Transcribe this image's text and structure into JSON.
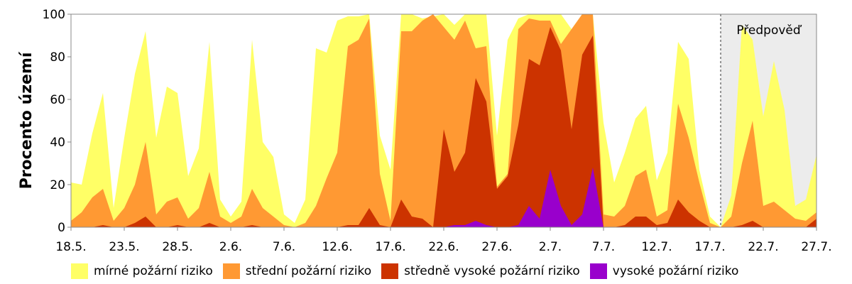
{
  "chart_data": {
    "type": "area",
    "stacked": false,
    "ylabel": "Procento území",
    "ylim": [
      0,
      100
    ],
    "yticks": [
      0,
      20,
      40,
      60,
      80,
      100
    ],
    "xlim": [
      "18.5.",
      "27.7."
    ],
    "xticks": [
      "18.5.",
      "23.5.",
      "28.5.",
      "2.6.",
      "7.6.",
      "12.6.",
      "17.6.",
      "22.6.",
      "27.6.",
      "2.7.",
      "7.7.",
      "12.7.",
      "17.7.",
      "22.7.",
      "27.7."
    ],
    "forecast": {
      "label": "Předpověď",
      "start": "18.7.",
      "end": "27.7."
    },
    "dates": [
      "18.5.",
      "19.5.",
      "20.5.",
      "21.5.",
      "22.5.",
      "23.5.",
      "24.5.",
      "25.5.",
      "26.5.",
      "27.5.",
      "28.5.",
      "29.5.",
      "30.5.",
      "31.5.",
      "1.6.",
      "2.6.",
      "3.6.",
      "4.6.",
      "5.6.",
      "6.6.",
      "7.6.",
      "8.6.",
      "9.6.",
      "10.6.",
      "11.6.",
      "12.6.",
      "13.6.",
      "14.6.",
      "15.6.",
      "16.6.",
      "17.6.",
      "18.6.",
      "19.6.",
      "20.6.",
      "21.6.",
      "22.6.",
      "23.6.",
      "24.6.",
      "25.6.",
      "26.6.",
      "27.6.",
      "28.6.",
      "29.6.",
      "30.6.",
      "1.7.",
      "2.7.",
      "3.7.",
      "4.7.",
      "5.7.",
      "6.7.",
      "7.7.",
      "8.7.",
      "9.7.",
      "10.7.",
      "11.7.",
      "12.7.",
      "13.7.",
      "14.7.",
      "15.7.",
      "16.7.",
      "17.7.",
      "18.7.",
      "19.7.",
      "20.7.",
      "21.7.",
      "22.7.",
      "23.7.",
      "24.7.",
      "25.7.",
      "26.7.",
      "27.7."
    ],
    "series": [
      {
        "name": "mírné požární riziko",
        "color": "#FFFF66",
        "values": [
          21,
          20,
          44,
          63,
          9,
          42,
          72,
          92,
          42,
          66,
          63,
          24,
          37,
          87,
          13,
          5,
          12,
          88,
          40,
          33,
          6,
          2,
          13,
          84,
          82,
          97,
          99,
          99,
          100,
          43,
          27,
          100,
          100,
          98,
          99,
          100,
          95,
          100,
          100,
          100,
          43,
          88,
          98,
          100,
          100,
          100,
          100,
          93,
          100,
          100,
          49,
          21,
          35,
          51,
          57,
          22,
          35,
          87,
          79,
          27,
          5,
          0,
          15,
          95,
          88,
          52,
          78,
          55,
          10,
          13,
          34
        ]
      },
      {
        "name": "střední požární riziko",
        "color": "#FF9933",
        "values": [
          3,
          7,
          14,
          18,
          3,
          9,
          20,
          40,
          6,
          12,
          14,
          4,
          9,
          26,
          5,
          2,
          5,
          18,
          9,
          5,
          1,
          0,
          2,
          10,
          23,
          35,
          85,
          88,
          98,
          25,
          3,
          92,
          92,
          97,
          100,
          94,
          88,
          97,
          84,
          85,
          19,
          25,
          93,
          98,
          97,
          97,
          86,
          93,
          100,
          100,
          6,
          5,
          10,
          24,
          27,
          5,
          8,
          58,
          42,
          21,
          2,
          0,
          5,
          30,
          50,
          10,
          12,
          8,
          4,
          3,
          7
        ]
      },
      {
        "name": "středně vysoké požární riziko",
        "color": "#CC3300",
        "values": [
          0,
          0,
          0,
          1,
          0,
          0,
          2,
          5,
          0,
          0,
          1,
          0,
          0,
          2,
          0,
          0,
          0,
          1,
          0,
          0,
          0,
          0,
          0,
          0,
          0,
          0,
          1,
          1,
          9,
          1,
          0,
          13,
          5,
          4,
          0,
          46,
          26,
          35,
          70,
          59,
          18,
          24,
          48,
          79,
          76,
          94,
          83,
          46,
          81,
          90,
          0,
          0,
          1,
          5,
          5,
          1,
          2,
          13,
          7,
          3,
          0,
          0,
          0,
          1,
          3,
          0,
          0,
          0,
          0,
          0,
          4
        ]
      },
      {
        "name": "vysoké požární riziko",
        "color": "#9900CC",
        "values": [
          0,
          0,
          0,
          0,
          0,
          0,
          0,
          0,
          0,
          0,
          0,
          0,
          0,
          0,
          0,
          0,
          0,
          0,
          0,
          0,
          0,
          0,
          0,
          0,
          0,
          0,
          0,
          0,
          0,
          0,
          0,
          0,
          0,
          0,
          0,
          0,
          1,
          1,
          3,
          1,
          0,
          0,
          1,
          10,
          4,
          27,
          10,
          1,
          6,
          28,
          0,
          0,
          0,
          0,
          0,
          0,
          0,
          0,
          0,
          0,
          0,
          0,
          0,
          0,
          0,
          0,
          0,
          0,
          0,
          0,
          0
        ]
      }
    ],
    "legend_placement": "bottom",
    "grid": false
  }
}
